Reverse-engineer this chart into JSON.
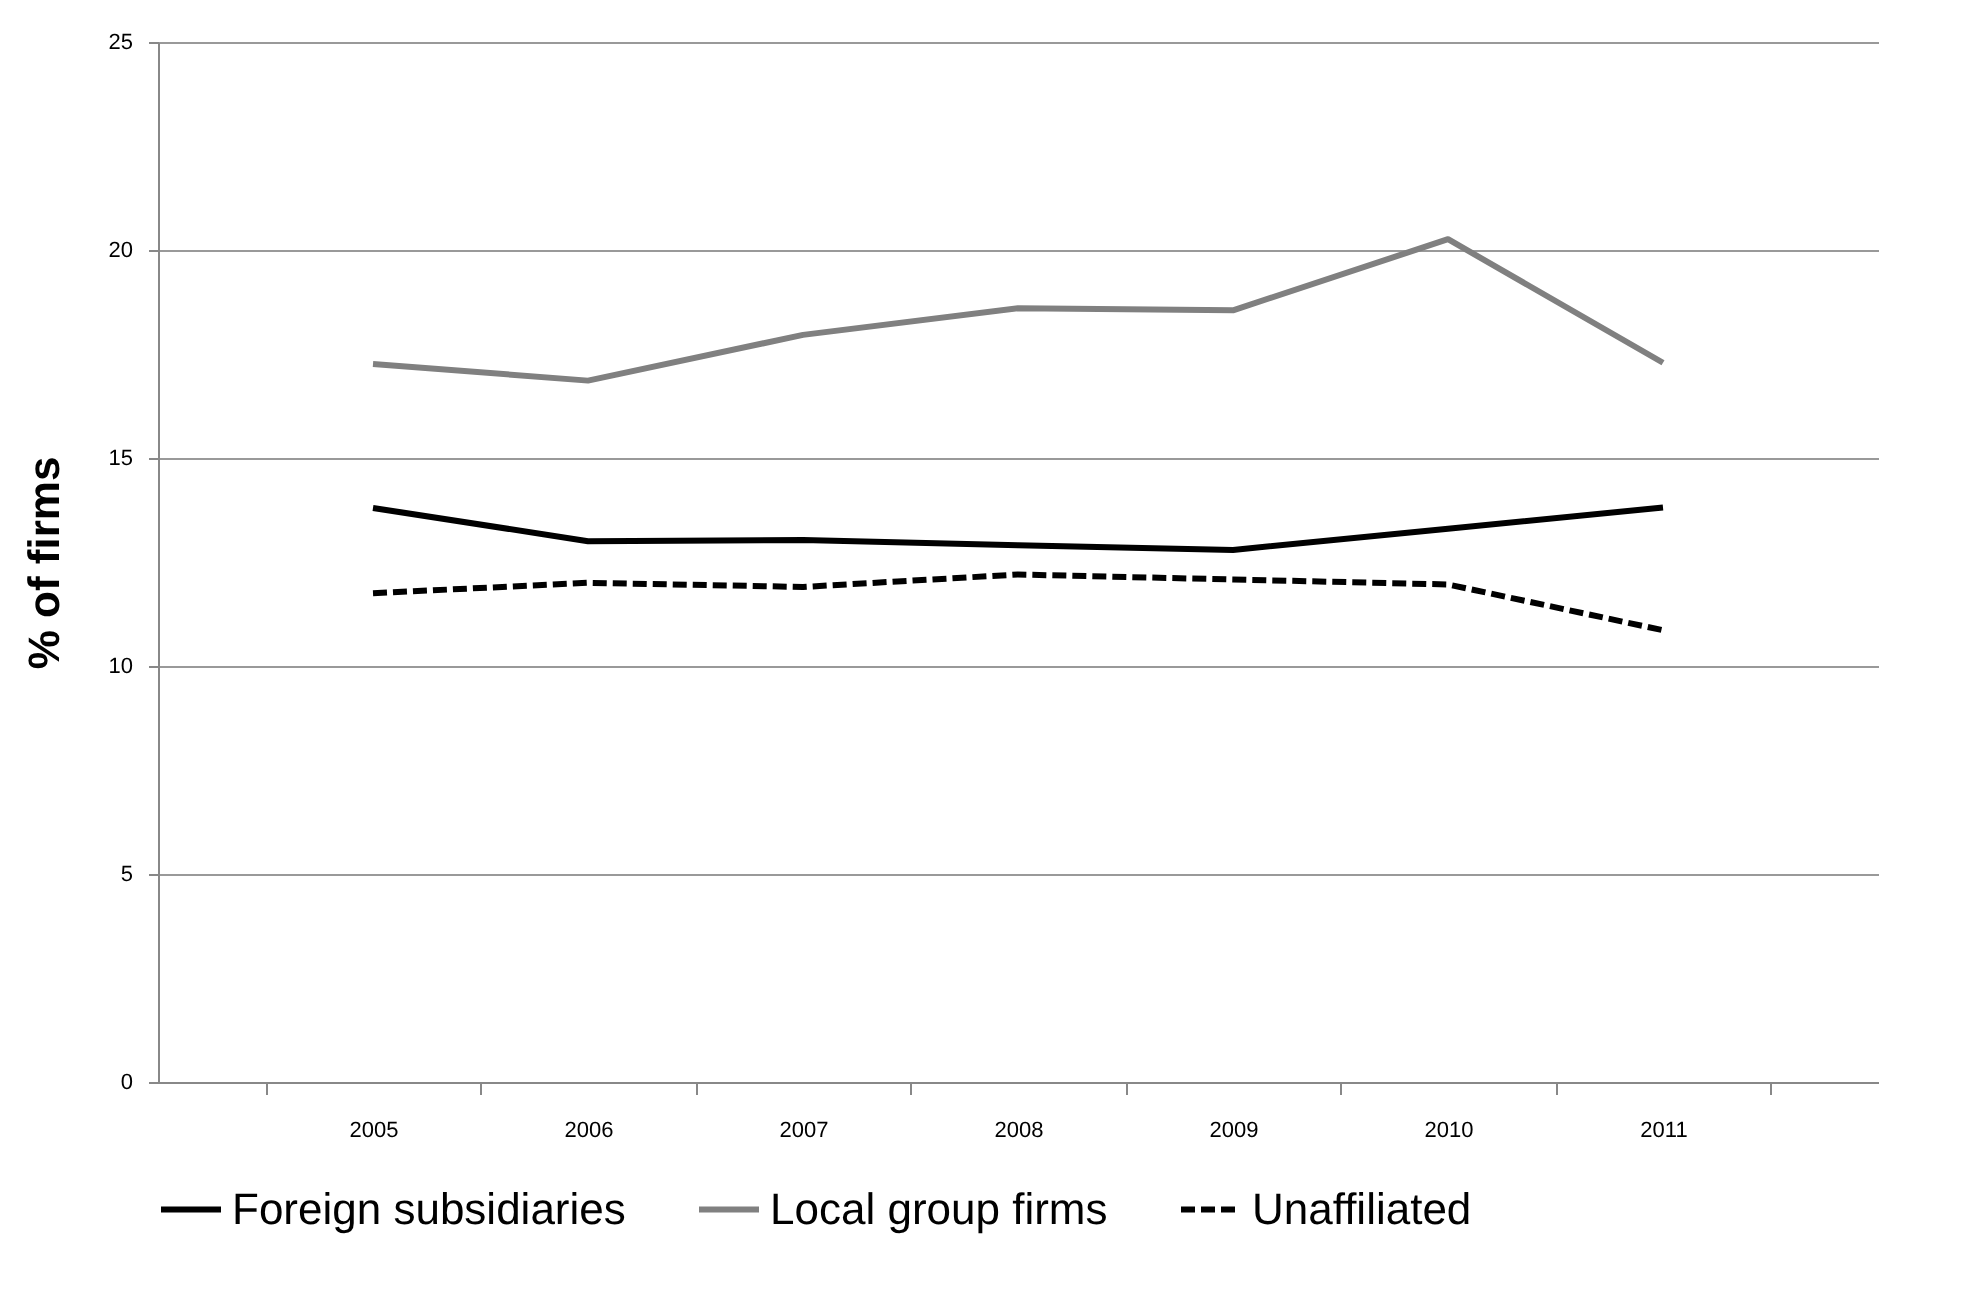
{
  "chart_data": {
    "type": "line",
    "ylabel": "% of firms",
    "categories": [
      "2005",
      "2006",
      "2007",
      "2008",
      "2009",
      "2010",
      "2011"
    ],
    "series": [
      {
        "name": "Foreign subsidiaries",
        "color": "#000000",
        "line_style": "solid",
        "values": [
          13.8,
          13.0,
          13.03,
          12.9,
          12.79,
          13.3,
          13.81
        ]
      },
      {
        "name": "Local group firms",
        "color": "#808080",
        "line_style": "solid",
        "values": [
          17.26,
          16.86,
          17.96,
          18.6,
          18.55,
          20.26,
          17.29
        ]
      },
      {
        "name": "Unaffiliated",
        "color": "#000000",
        "line_style": "dashed",
        "values": [
          11.75,
          12.0,
          11.9,
          12.2,
          12.08,
          11.96,
          10.86
        ]
      }
    ],
    "ylim": [
      0,
      25
    ],
    "yticks": [
      0,
      5,
      10,
      15,
      20,
      25
    ],
    "grid": "y",
    "legend": "bottom"
  }
}
